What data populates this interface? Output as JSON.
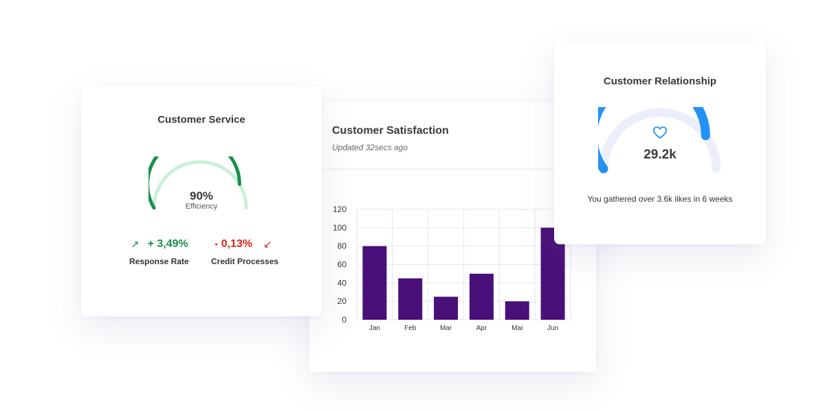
{
  "customer_service": {
    "title": "Customer Service",
    "efficiency_value": "90%",
    "efficiency_fraction": 0.9,
    "efficiency_label": "Efficiency",
    "response_rate": {
      "value": "+ 3,49%",
      "label": "Response Rate",
      "arrow": "↗"
    },
    "credit_processes": {
      "value": "- 0,13%",
      "label": "Credit Processes",
      "arrow": "↙"
    },
    "colors": {
      "gauge_fill": "#1a8e4c",
      "gauge_track": "#c8f0d9",
      "up": "#1a8e4c",
      "down": "#e2231a"
    }
  },
  "customer_satisfaction": {
    "title": "Customer Satisfaction",
    "updated": "Updated 32secs ago"
  },
  "customer_relationship": {
    "title": "Customer Relationship",
    "value": "29.2k",
    "gauge_fraction": 0.8,
    "note": "You gathered over 3.6k likes in 6 weeks",
    "icon": "heart-icon",
    "colors": {
      "gauge_fill": "#2492f5",
      "gauge_track": "#eceffa"
    }
  },
  "chart_data": {
    "type": "bar",
    "categories": [
      "Jan",
      "Feb",
      "Mar",
      "Apr",
      "Mai",
      "Jun"
    ],
    "values": [
      80,
      45,
      25,
      50,
      20,
      100
    ],
    "yticks": [
      0,
      20,
      40,
      60,
      80,
      100,
      120
    ],
    "ylim": [
      0,
      120
    ],
    "grid": true,
    "bar_color": "#4a1079"
  }
}
